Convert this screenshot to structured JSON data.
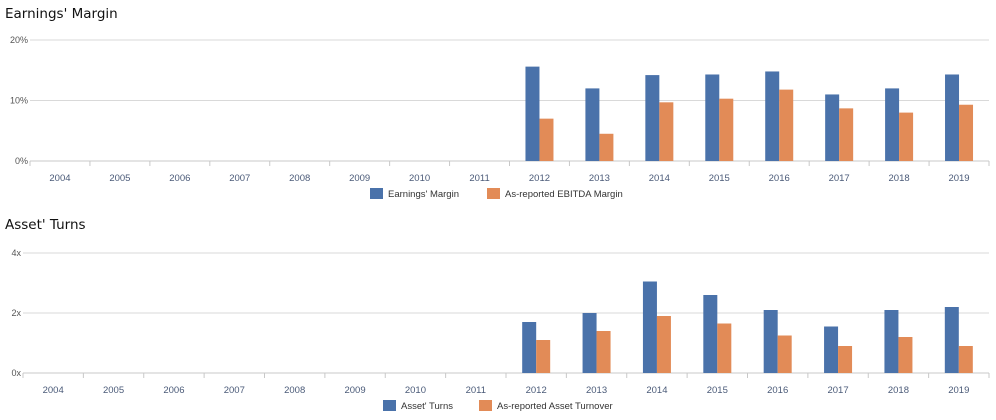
{
  "colors": {
    "primary": "#4a72aa",
    "secondary": "#e28b57",
    "grid": "#d9d9d9",
    "axis": "#c8c8c8"
  },
  "chart_data": [
    {
      "type": "bar",
      "title": "Earnings' Margin",
      "categories": [
        "2004",
        "2005",
        "2006",
        "2007",
        "2008",
        "2009",
        "2010",
        "2011",
        "2012",
        "2013",
        "2014",
        "2015",
        "2016",
        "2017",
        "2018",
        "2019"
      ],
      "ylim": [
        0,
        20
      ],
      "yticks": [
        0,
        10,
        20
      ],
      "ytick_labels": [
        "0%",
        "10%",
        "20%"
      ],
      "grid": true,
      "legend_position": "bottom",
      "series": [
        {
          "name": "Earnings' Margin",
          "color": "#4a72aa",
          "values": [
            null,
            null,
            null,
            null,
            null,
            null,
            null,
            null,
            15.6,
            12.0,
            14.2,
            14.3,
            14.8,
            11.0,
            12.0,
            14.3
          ]
        },
        {
          "name": "As-reported EBITDA Margin",
          "color": "#e28b57",
          "values": [
            null,
            null,
            null,
            null,
            null,
            null,
            null,
            null,
            7.0,
            4.5,
            9.7,
            10.3,
            11.8,
            8.7,
            8.0,
            9.3
          ]
        }
      ]
    },
    {
      "type": "bar",
      "title": "Asset' Turns",
      "categories": [
        "2004",
        "2005",
        "2006",
        "2007",
        "2008",
        "2009",
        "2010",
        "2011",
        "2012",
        "2013",
        "2014",
        "2015",
        "2016",
        "2017",
        "2018",
        "2019"
      ],
      "ylim": [
        0,
        4
      ],
      "yticks": [
        0,
        2,
        4
      ],
      "ytick_labels": [
        "0x",
        "2x",
        "4x"
      ],
      "grid": true,
      "legend_position": "bottom",
      "series": [
        {
          "name": "Asset' Turns",
          "color": "#4a72aa",
          "values": [
            null,
            null,
            null,
            null,
            null,
            null,
            null,
            null,
            1.7,
            2.0,
            3.05,
            2.6,
            2.1,
            1.55,
            2.1,
            2.2
          ]
        },
        {
          "name": "As-reported Asset Turnover",
          "color": "#e28b57",
          "values": [
            null,
            null,
            null,
            null,
            null,
            null,
            null,
            null,
            1.1,
            1.4,
            1.9,
            1.65,
            1.25,
            0.9,
            1.2,
            0.9
          ]
        }
      ]
    }
  ]
}
